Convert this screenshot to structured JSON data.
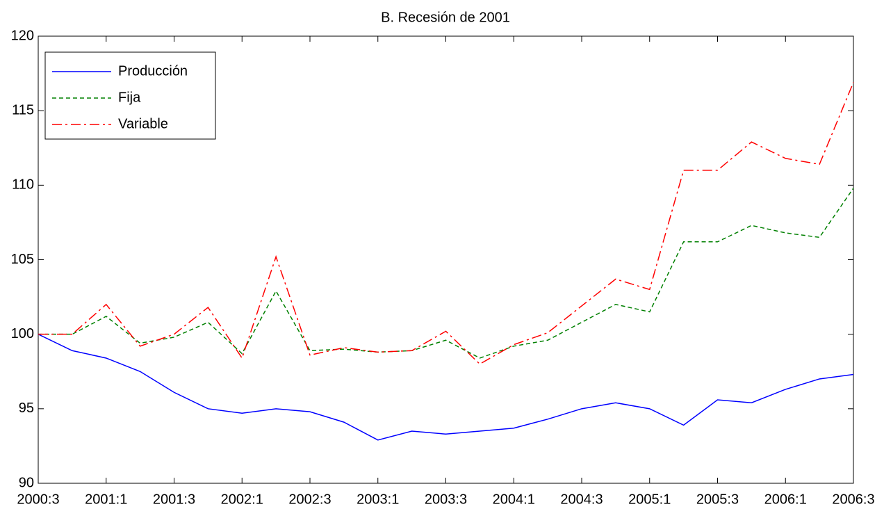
{
  "chart_data": {
    "type": "line",
    "title": "B. Recesión de 2001",
    "categories": [
      "2000:3",
      null,
      "2001:1",
      null,
      "2001:3",
      null,
      "2002:1",
      null,
      "2002:3",
      null,
      "2003:1",
      null,
      "2003:3",
      null,
      "2004:1",
      null,
      "2004:3",
      null,
      "2005:1",
      null,
      "2005:3",
      null,
      "2006:1",
      null,
      "2006:3"
    ],
    "series": [
      {
        "name": "Producción",
        "color": "#0000ff",
        "linestyle": "solid",
        "values": [
          100,
          98.9,
          98.4,
          97.5,
          96.1,
          95.0,
          94.7,
          95.0,
          94.8,
          94.1,
          92.9,
          93.5,
          93.3,
          93.5,
          93.7,
          94.3,
          95.0,
          95.4,
          95.0,
          93.9,
          95.6,
          95.4,
          96.3,
          97.0,
          97.3
        ]
      },
      {
        "name": "Fija",
        "color": "#008000",
        "linestyle": "dashed",
        "values": [
          100,
          100,
          101.2,
          99.4,
          99.8,
          100.8,
          98.7,
          102.9,
          98.9,
          99.0,
          98.8,
          98.9,
          99.6,
          98.4,
          99.2,
          99.6,
          100.8,
          102.0,
          101.5,
          106.2,
          106.2,
          107.3,
          106.8,
          106.5,
          109.8
        ]
      },
      {
        "name": "Variable",
        "color": "#ff0000",
        "linestyle": "dashdot",
        "values": [
          100,
          100,
          102.0,
          99.2,
          100.0,
          101.8,
          98.4,
          105.2,
          98.6,
          99.1,
          98.8,
          98.9,
          100.2,
          98.0,
          99.3,
          100.1,
          101.9,
          103.7,
          103.0,
          111.0,
          111.0,
          112.9,
          111.8,
          111.4,
          116.9
        ]
      }
    ],
    "ylim": [
      90,
      120
    ],
    "yticks": [
      90,
      95,
      100,
      105,
      110,
      115,
      120
    ],
    "grid": false,
    "legend": "top-left"
  }
}
